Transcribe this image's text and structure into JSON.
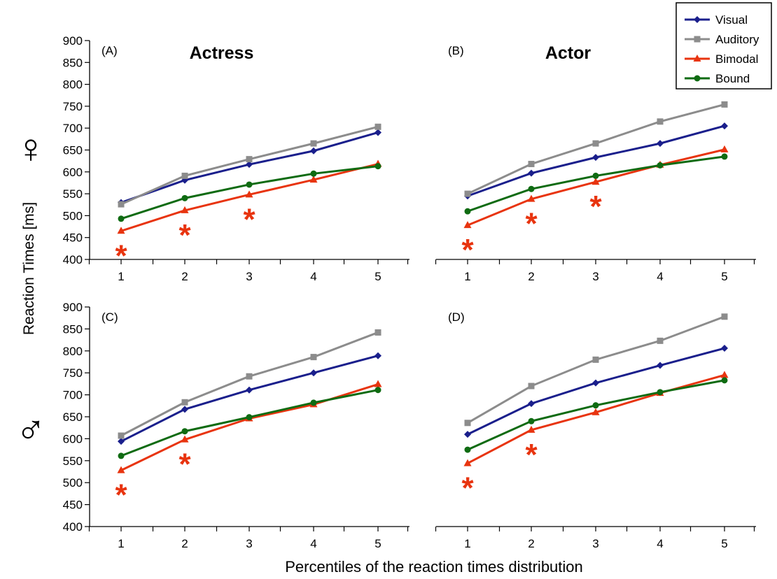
{
  "figure": {
    "y_axis_label": "Reaction Times [ms]",
    "x_axis_label": "Percentiles of the reaction times distribution",
    "top_symbol": "♀",
    "bottom_symbol": "♂"
  },
  "legend": {
    "placement": "top-right",
    "entries": [
      {
        "name": "Visual",
        "color": "#1a1f8c",
        "marker": "diamond"
      },
      {
        "name": "Auditory",
        "color": "#8c8c8c",
        "marker": "square"
      },
      {
        "name": "Bimodal",
        "color": "#e8340f",
        "marker": "triangle"
      },
      {
        "name": "Bound",
        "color": "#0f6b12",
        "marker": "circle"
      }
    ]
  },
  "chart_data": [
    {
      "type": "line",
      "panel": "(A)",
      "title": "Actress",
      "categories": [
        "1",
        "2",
        "3",
        "4",
        "5"
      ],
      "ylim": [
        400,
        900
      ],
      "yticks": [
        400,
        450,
        500,
        550,
        600,
        650,
        700,
        750,
        800,
        850,
        900
      ],
      "series": [
        {
          "name": "Visual",
          "values": [
            530,
            581,
            617,
            648,
            690
          ]
        },
        {
          "name": "Auditory",
          "values": [
            526,
            591,
            629,
            665,
            703
          ]
        },
        {
          "name": "Bimodal",
          "values": [
            465,
            512,
            548,
            582,
            618
          ]
        },
        {
          "name": "Bound",
          "values": [
            493,
            540,
            571,
            596,
            613
          ]
        }
      ],
      "significance_markers": [
        1,
        2,
        3
      ]
    },
    {
      "type": "line",
      "panel": "(B)",
      "title": "Actor",
      "categories": [
        "1",
        "2",
        "3",
        "4",
        "5"
      ],
      "ylim": [
        400,
        900
      ],
      "series": [
        {
          "name": "Visual",
          "values": [
            545,
            597,
            633,
            665,
            705
          ]
        },
        {
          "name": "Auditory",
          "values": [
            550,
            618,
            665,
            715,
            754
          ]
        },
        {
          "name": "Bimodal",
          "values": [
            478,
            538,
            577,
            616,
            651
          ]
        },
        {
          "name": "Bound",
          "values": [
            510,
            561,
            591,
            615,
            635
          ]
        }
      ],
      "significance_markers": [
        1,
        2,
        3
      ]
    },
    {
      "type": "line",
      "panel": "(C)",
      "title": "",
      "categories": [
        "1",
        "2",
        "3",
        "4",
        "5"
      ],
      "ylim": [
        400,
        900
      ],
      "yticks": [
        400,
        450,
        500,
        550,
        600,
        650,
        700,
        750,
        800,
        850,
        900
      ],
      "series": [
        {
          "name": "Visual",
          "values": [
            594,
            667,
            711,
            750,
            789
          ]
        },
        {
          "name": "Auditory",
          "values": [
            607,
            683,
            742,
            786,
            842
          ]
        },
        {
          "name": "Bimodal",
          "values": [
            528,
            598,
            646,
            678,
            724
          ]
        },
        {
          "name": "Bound",
          "values": [
            561,
            617,
            649,
            682,
            711
          ]
        }
      ],
      "significance_markers": [
        1,
        2
      ]
    },
    {
      "type": "line",
      "panel": "(D)",
      "title": "",
      "categories": [
        "1",
        "2",
        "3",
        "4",
        "5"
      ],
      "ylim": [
        400,
        900
      ],
      "series": [
        {
          "name": "Visual",
          "values": [
            610,
            680,
            727,
            767,
            806
          ]
        },
        {
          "name": "Auditory",
          "values": [
            636,
            720,
            780,
            823,
            878
          ]
        },
        {
          "name": "Bimodal",
          "values": [
            544,
            620,
            660,
            704,
            745
          ]
        },
        {
          "name": "Bound",
          "values": [
            575,
            640,
            676,
            706,
            733
          ]
        }
      ],
      "significance_markers": [
        1,
        2
      ]
    }
  ]
}
